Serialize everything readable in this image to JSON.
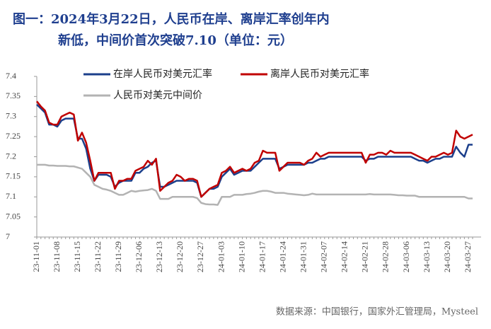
{
  "chart_data": {
    "type": "line",
    "title": [
      "图一：2024年3月22日，人民币在岸、离岸汇率创年内",
      "新低，中间价首次突破7.10（单位：元）"
    ],
    "source": "数据来源：中国银行，国家外汇管理局，Mysteel",
    "categories": [
      "23-11-01",
      null,
      null,
      null,
      null,
      "23-11-08",
      null,
      null,
      null,
      null,
      "23-11-15",
      null,
      null,
      null,
      null,
      "23-11-22",
      null,
      null,
      null,
      null,
      "23-11-29",
      null,
      null,
      null,
      null,
      "23-12-06",
      null,
      null,
      null,
      null,
      "23-12-13",
      null,
      null,
      null,
      null,
      "23-12-20",
      null,
      null,
      null,
      null,
      "23-12-27",
      null,
      null,
      null,
      null,
      "24-01-03",
      null,
      null,
      null,
      null,
      "24-01-10",
      null,
      null,
      null,
      null,
      "24-01-17",
      null,
      null,
      null,
      null,
      "24-01-24",
      null,
      null,
      null,
      null,
      "24-01-31",
      null,
      null,
      null,
      null,
      "24-02-07",
      null,
      null,
      null,
      null,
      "24-02-14",
      null,
      null,
      null,
      null,
      "24-02-21",
      null,
      null,
      null,
      null,
      "24-02-28",
      null,
      null,
      null,
      null,
      "24-03-06",
      null,
      null,
      null,
      null,
      "24-03-13",
      null,
      null,
      null,
      null,
      "24-03-20",
      null,
      null,
      null,
      null,
      "24-03-27",
      null
    ],
    "ylim": [
      7,
      7.4
    ],
    "yticks": [
      7,
      7.05,
      7.1,
      7.15,
      7.2,
      7.25,
      7.3,
      7.35,
      7.4
    ],
    "series": [
      {
        "name": "在岸人民币对美元汇率",
        "color": "#1b3f8b",
        "values": [
          7.33,
          7.32,
          7.31,
          7.28,
          7.28,
          7.275,
          7.29,
          7.295,
          7.295,
          7.295,
          7.245,
          7.245,
          7.22,
          7.17,
          7.14,
          7.155,
          7.155,
          7.155,
          7.15,
          7.125,
          7.135,
          7.14,
          7.14,
          7.14,
          7.16,
          7.16,
          7.17,
          7.175,
          7.185,
          7.19,
          7.125,
          7.125,
          7.13,
          7.135,
          7.14,
          7.14,
          7.14,
          7.14,
          7.14,
          7.135,
          7.1,
          7.11,
          7.12,
          7.12,
          7.125,
          7.15,
          7.16,
          7.17,
          7.155,
          7.16,
          7.165,
          7.165,
          7.165,
          7.175,
          7.185,
          7.195,
          7.195,
          7.195,
          7.195,
          7.17,
          7.175,
          7.18,
          7.18,
          7.18,
          7.18,
          7.18,
          7.185,
          7.185,
          7.19,
          7.195,
          7.195,
          7.2,
          7.2,
          7.2,
          7.2,
          7.2,
          7.2,
          7.2,
          7.2,
          7.2,
          7.19,
          7.195,
          7.195,
          7.2,
          7.2,
          7.2,
          7.2,
          7.2,
          7.2,
          7.2,
          7.2,
          7.2,
          7.195,
          7.19,
          7.19,
          7.185,
          7.19,
          7.195,
          7.195,
          7.2,
          7.2,
          7.2,
          7.225,
          7.21,
          7.2,
          7.23,
          7.23
        ]
      },
      {
        "name": "离岸人民币对美元汇率",
        "color": "#c00000",
        "values": [
          7.338,
          7.325,
          7.315,
          7.285,
          7.28,
          7.28,
          7.3,
          7.305,
          7.31,
          7.305,
          7.24,
          7.26,
          7.235,
          7.19,
          7.14,
          7.16,
          7.16,
          7.16,
          7.16,
          7.12,
          7.14,
          7.14,
          7.145,
          7.145,
          7.165,
          7.17,
          7.175,
          7.19,
          7.18,
          7.195,
          7.115,
          7.125,
          7.135,
          7.14,
          7.155,
          7.15,
          7.14,
          7.145,
          7.145,
          7.14,
          7.1,
          7.11,
          7.12,
          7.125,
          7.13,
          7.16,
          7.165,
          7.175,
          7.16,
          7.165,
          7.17,
          7.165,
          7.17,
          7.185,
          7.19,
          7.215,
          7.21,
          7.21,
          7.21,
          7.165,
          7.175,
          7.185,
          7.185,
          7.185,
          7.185,
          7.18,
          7.19,
          7.195,
          7.21,
          7.2,
          7.205,
          7.21,
          7.21,
          7.21,
          7.21,
          7.21,
          7.21,
          7.21,
          7.21,
          7.21,
          7.185,
          7.205,
          7.205,
          7.21,
          7.21,
          7.205,
          7.215,
          7.21,
          7.21,
          7.21,
          7.21,
          7.21,
          7.205,
          7.2,
          7.195,
          7.19,
          7.2,
          7.2,
          7.205,
          7.21,
          7.205,
          7.21,
          7.265,
          7.25,
          7.245,
          7.25,
          7.255
        ]
      },
      {
        "name": "人民币对美元中间价",
        "color": "#b3b3b3",
        "values": [
          7.18,
          7.18,
          7.18,
          7.178,
          7.178,
          7.177,
          7.177,
          7.177,
          7.176,
          7.176,
          7.173,
          7.17,
          7.16,
          7.15,
          7.13,
          7.125,
          7.12,
          7.118,
          7.115,
          7.11,
          7.105,
          7.105,
          7.11,
          7.115,
          7.113,
          7.115,
          7.116,
          7.117,
          7.12,
          7.115,
          7.095,
          7.095,
          7.095,
          7.1,
          7.1,
          7.1,
          7.1,
          7.1,
          7.1,
          7.097,
          7.085,
          7.082,
          7.081,
          7.081,
          7.08,
          7.1,
          7.1,
          7.1,
          7.105,
          7.105,
          7.105,
          7.107,
          7.108,
          7.11,
          7.113,
          7.115,
          7.115,
          7.113,
          7.11,
          7.11,
          7.11,
          7.108,
          7.107,
          7.106,
          7.105,
          7.104,
          7.105,
          7.108,
          7.106,
          7.106,
          7.106,
          7.106,
          7.106,
          7.106,
          7.106,
          7.106,
          7.106,
          7.106,
          7.106,
          7.106,
          7.106,
          7.107,
          7.106,
          7.106,
          7.106,
          7.106,
          7.106,
          7.105,
          7.104,
          7.104,
          7.103,
          7.103,
          7.103,
          7.1,
          7.1,
          7.1,
          7.1,
          7.1,
          7.1,
          7.1,
          7.1,
          7.1,
          7.1,
          7.1,
          7.1,
          7.096,
          7.096
        ]
      }
    ]
  }
}
